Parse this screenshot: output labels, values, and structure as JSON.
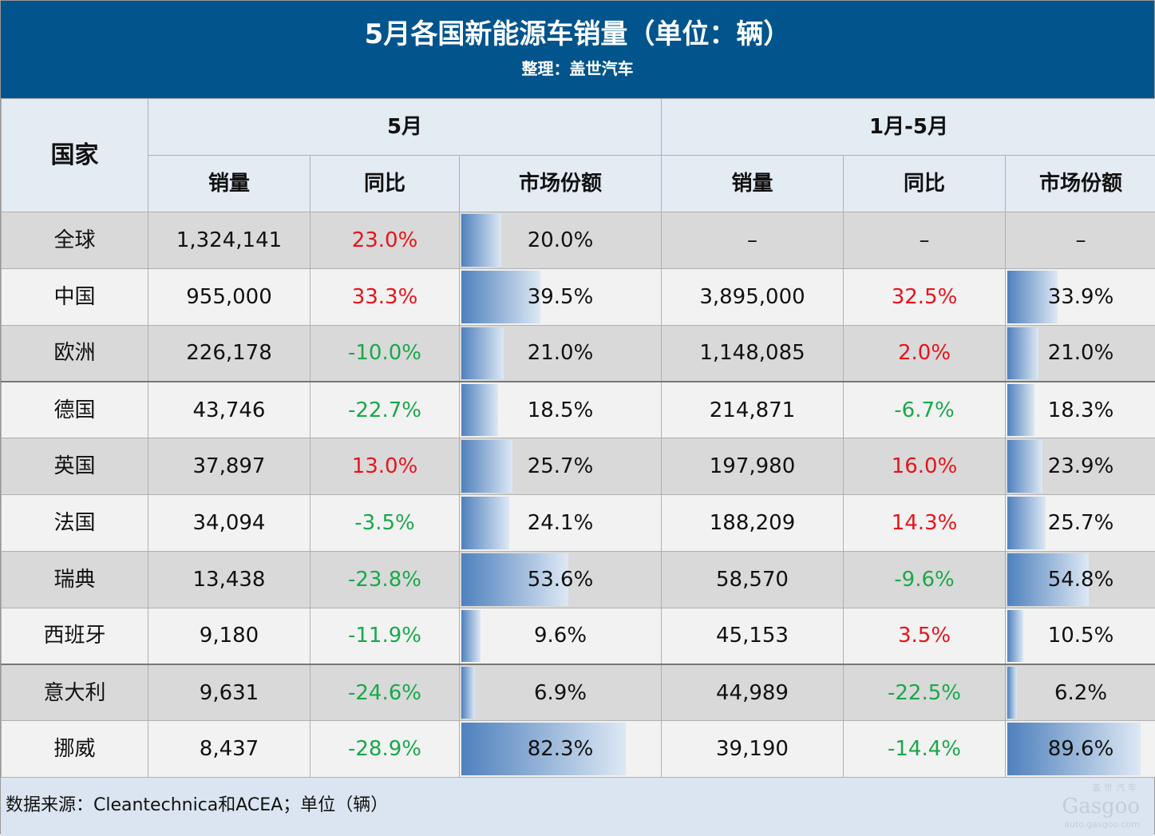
{
  "header": {
    "title": "5月各国新能源车销量（单位：辆）",
    "subtitle": "整理：盖世汽车"
  },
  "chart_data": {
    "type": "table",
    "title": "5月各国新能源车销量（单位：辆）",
    "country_header": "国家",
    "groups": [
      "5月",
      "1月-5月"
    ],
    "columns": [
      "销量",
      "同比",
      "市场份额",
      "销量",
      "同比",
      "市场份额"
    ],
    "rows": [
      {
        "country": "全球",
        "may_sales": "1,324,141",
        "may_yoy": "23.0%",
        "may_share": "20.0%",
        "ytd_sales": "–",
        "ytd_yoy": "–",
        "ytd_share": "–"
      },
      {
        "country": "中国",
        "may_sales": "955,000",
        "may_yoy": "33.3%",
        "may_share": "39.5%",
        "ytd_sales": "3,895,000",
        "ytd_yoy": "32.5%",
        "ytd_share": "33.9%"
      },
      {
        "country": "欧洲",
        "may_sales": "226,178",
        "may_yoy": "-10.0%",
        "may_share": "21.0%",
        "ytd_sales": "1,148,085",
        "ytd_yoy": "2.0%",
        "ytd_share": "21.0%"
      },
      {
        "country": "德国",
        "may_sales": "43,746",
        "may_yoy": "-22.7%",
        "may_share": "18.5%",
        "ytd_sales": "214,871",
        "ytd_yoy": "-6.7%",
        "ytd_share": "18.3%"
      },
      {
        "country": "英国",
        "may_sales": "37,897",
        "may_yoy": "13.0%",
        "may_share": "25.7%",
        "ytd_sales": "197,980",
        "ytd_yoy": "16.0%",
        "ytd_share": "23.9%"
      },
      {
        "country": "法国",
        "may_sales": "34,094",
        "may_yoy": "-3.5%",
        "may_share": "24.1%",
        "ytd_sales": "188,209",
        "ytd_yoy": "14.3%",
        "ytd_share": "25.7%"
      },
      {
        "country": "瑞典",
        "may_sales": "13,438",
        "may_yoy": "-23.8%",
        "may_share": "53.6%",
        "ytd_sales": "58,570",
        "ytd_yoy": "-9.6%",
        "ytd_share": "54.8%"
      },
      {
        "country": "西班牙",
        "may_sales": "9,180",
        "may_yoy": "-11.9%",
        "may_share": "9.6%",
        "ytd_sales": "45,153",
        "ytd_yoy": "3.5%",
        "ytd_share": "10.5%"
      },
      {
        "country": "意大利",
        "may_sales": "9,631",
        "may_yoy": "-24.6%",
        "may_share": "6.9%",
        "ytd_sales": "44,989",
        "ytd_yoy": "-22.5%",
        "ytd_share": "6.2%"
      },
      {
        "country": "挪威",
        "may_sales": "8,437",
        "may_yoy": "-28.9%",
        "may_share": "82.3%",
        "ytd_sales": "39,190",
        "ytd_yoy": "-14.4%",
        "ytd_share": "89.6%"
      }
    ],
    "colors": {
      "positive": "#e8141b",
      "negative": "#1aa84a",
      "bar": "#4f81bd",
      "title_bg": "#02548c"
    }
  },
  "footer": {
    "source": "数据来源：Cleantechnica和ACEA；单位（辆）",
    "logo_cn": "盖世汽车",
    "logo_en": "Gasgoo",
    "logo_url": "auto.gasgoo.com"
  }
}
